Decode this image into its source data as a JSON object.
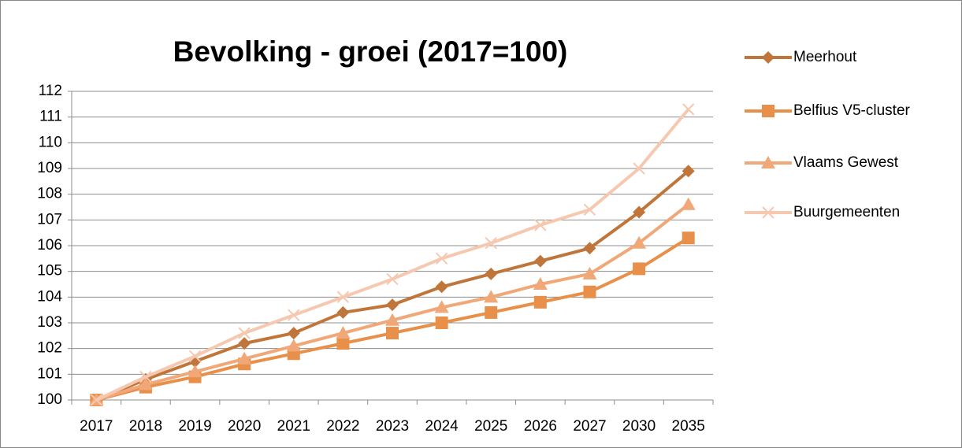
{
  "chart_data": {
    "type": "line",
    "title": "Bevolking - groei (2017=100)",
    "categories": [
      "2017",
      "2018",
      "2019",
      "2020",
      "2021",
      "2022",
      "2023",
      "2024",
      "2025",
      "2026",
      "2027",
      "2030",
      "2035"
    ],
    "series": [
      {
        "name": "Meerhout",
        "color": "#c0763a",
        "marker": "diamond",
        "values": [
          100,
          100.8,
          101.5,
          102.2,
          102.6,
          103.4,
          103.7,
          104.4,
          104.9,
          105.4,
          105.9,
          107.3,
          108.9
        ]
      },
      {
        "name": "Belfius V5-cluster",
        "color": "#e8904a",
        "marker": "square",
        "values": [
          100,
          100.5,
          100.9,
          101.4,
          101.8,
          102.2,
          102.6,
          103.0,
          103.4,
          103.8,
          104.2,
          105.1,
          106.3
        ]
      },
      {
        "name": "Vlaams Gewest",
        "color": "#f0a878",
        "marker": "triangle",
        "values": [
          100,
          100.6,
          101.1,
          101.6,
          102.1,
          102.6,
          103.1,
          103.6,
          104.0,
          104.5,
          104.9,
          106.1,
          107.6
        ]
      },
      {
        "name": "Buurgemeenten",
        "color": "#f6c8b0",
        "marker": "x",
        "values": [
          100,
          100.9,
          101.7,
          102.6,
          103.3,
          104.0,
          104.7,
          105.5,
          106.1,
          106.8,
          107.4,
          109.0,
          111.3
        ]
      }
    ],
    "ylim": [
      100,
      112
    ],
    "yticks": [
      100,
      101,
      102,
      103,
      104,
      105,
      106,
      107,
      108,
      109,
      110,
      111,
      112
    ],
    "grid": true,
    "legend": "right"
  }
}
